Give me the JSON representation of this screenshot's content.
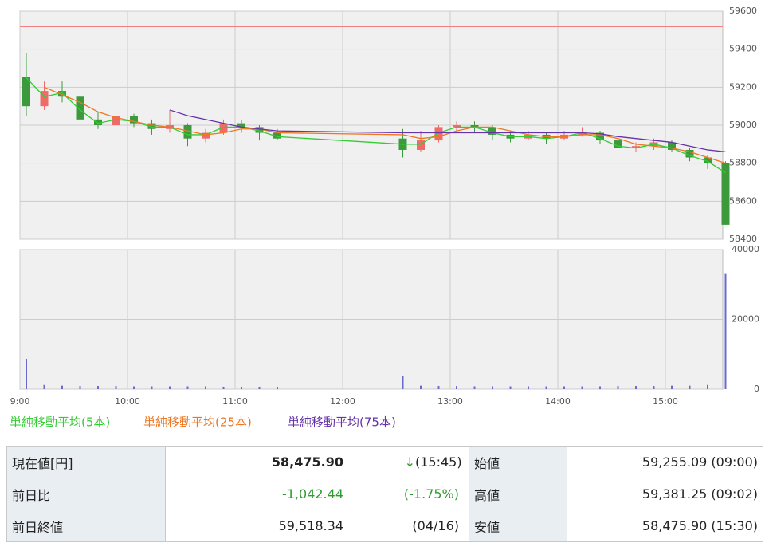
{
  "chart_data": {
    "type": "candlestick",
    "x": [
      "9:00",
      "9:10",
      "9:20",
      "9:30",
      "9:40",
      "9:50",
      "10:00",
      "10:10",
      "10:20",
      "10:30",
      "10:40",
      "10:50",
      "11:00",
      "11:10",
      "11:20",
      "12:30",
      "12:40",
      "12:50",
      "13:00",
      "13:10",
      "13:20",
      "13:30",
      "13:40",
      "13:50",
      "14:00",
      "14:10",
      "14:20",
      "14:30",
      "14:40",
      "14:50",
      "15:00",
      "15:10",
      "15:20",
      "15:30"
    ],
    "ohlc": [
      [
        59255,
        59381,
        59050,
        59100
      ],
      [
        59100,
        59230,
        59080,
        59180
      ],
      [
        59180,
        59230,
        59120,
        59150
      ],
      [
        59150,
        59170,
        59020,
        59030
      ],
      [
        59030,
        59070,
        58980,
        59000
      ],
      [
        59000,
        59090,
        58990,
        59050
      ],
      [
        59050,
        59060,
        58990,
        59010
      ],
      [
        59010,
        59030,
        58950,
        58980
      ],
      [
        58980,
        59080,
        58960,
        59000
      ],
      [
        59000,
        59010,
        58890,
        58930
      ],
      [
        58930,
        58980,
        58910,
        58960
      ],
      [
        58960,
        59030,
        58950,
        59010
      ],
      [
        59010,
        59030,
        58960,
        58990
      ],
      [
        58990,
        59000,
        58920,
        58960
      ],
      [
        58960,
        58980,
        58920,
        58930
      ],
      [
        58930,
        58980,
        58830,
        58870
      ],
      [
        58870,
        58970,
        58860,
        58920
      ],
      [
        58920,
        59000,
        58910,
        58990
      ],
      [
        58990,
        59020,
        58970,
        59000
      ],
      [
        59000,
        59020,
        58960,
        58990
      ],
      [
        58990,
        59000,
        58920,
        58950
      ],
      [
        58950,
        58970,
        58910,
        58930
      ],
      [
        58930,
        58970,
        58920,
        58950
      ],
      [
        58950,
        58960,
        58900,
        58930
      ],
      [
        58930,
        58970,
        58920,
        58950
      ],
      [
        58950,
        58990,
        58940,
        58960
      ],
      [
        58960,
        58970,
        58900,
        58920
      ],
      [
        58920,
        58930,
        58860,
        58880
      ],
      [
        58880,
        58910,
        58860,
        58890
      ],
      [
        58890,
        58930,
        58870,
        58910
      ],
      [
        58910,
        58920,
        58860,
        58870
      ],
      [
        58870,
        58880,
        58810,
        58830
      ],
      [
        58830,
        58840,
        58770,
        58800
      ],
      [
        58800,
        58810,
        58476,
        58476
      ]
    ],
    "colors": {
      "up": "#f06a6a",
      "down": "#3c9a3c"
    },
    "hline": {
      "value": 59518.34,
      "color": "#f08080"
    },
    "series": [
      {
        "name": "単純移動平均(5本)",
        "color": "#33cc33",
        "values": [
          59250,
          59150,
          59170,
          59080,
          59010,
          59030,
          59020,
          58990,
          58990,
          58950,
          58950,
          58990,
          58990,
          58970,
          58940,
          58900,
          58900,
          58960,
          58990,
          58990,
          58960,
          58940,
          58940,
          58930,
          58940,
          58960,
          58930,
          58890,
          58880,
          58900,
          58880,
          58840,
          58810,
          58750
        ]
      },
      {
        "name": "単純移動平均(25本)",
        "color": "#ee7722",
        "values": [
          null,
          59200,
          59160,
          59120,
          59070,
          59040,
          59020,
          59000,
          58990,
          58970,
          58950,
          58960,
          58980,
          58980,
          58960,
          58950,
          58930,
          58940,
          58970,
          58990,
          58990,
          58970,
          58950,
          58940,
          58940,
          58950,
          58950,
          58930,
          58900,
          58890,
          58880,
          58860,
          58830,
          58800
        ]
      },
      {
        "name": "単純移動平均(75本)",
        "color": "#6633aa",
        "values": [
          null,
          null,
          null,
          null,
          null,
          null,
          null,
          null,
          59080,
          59050,
          59030,
          59010,
          58990,
          58980,
          58970,
          58960,
          58960,
          58960,
          58960,
          58960,
          58960,
          58960,
          58960,
          58960,
          58960,
          58960,
          58955,
          58940,
          58930,
          58920,
          58910,
          58890,
          58870,
          58860
        ]
      }
    ],
    "ylim": [
      58400,
      59600
    ],
    "yticks": [
      58400,
      58600,
      58800,
      59000,
      59200,
      59400,
      59600
    ],
    "xticks": [
      "9:00",
      "10:00",
      "11:00",
      "12:00",
      "13:00",
      "14:00",
      "15:00"
    ],
    "grid": true,
    "volume": {
      "type": "bar",
      "color": "#6a6acc",
      "values": [
        8700,
        1200,
        1000,
        900,
        900,
        900,
        800,
        800,
        800,
        800,
        800,
        700,
        700,
        700,
        700,
        3800,
        1000,
        900,
        900,
        800,
        800,
        800,
        800,
        800,
        800,
        800,
        800,
        900,
        900,
        900,
        1000,
        1000,
        1200,
        33000
      ],
      "ylim": [
        0,
        40000
      ],
      "yticks": [
        0,
        20000,
        40000
      ]
    }
  },
  "table": {
    "rows": [
      [
        "現在値[円]",
        "58,475.90",
        "↓",
        "(15:45)",
        "始値",
        "59,255.09 (09:00)"
      ],
      [
        "前日比",
        "-1,042.44",
        "(-1.75%)",
        "高値",
        "59,381.25 (09:02)"
      ],
      [
        "前日終値",
        "59,518.34",
        "(04/16)",
        "安値",
        "58,475.90 (15:30)"
      ]
    ]
  }
}
